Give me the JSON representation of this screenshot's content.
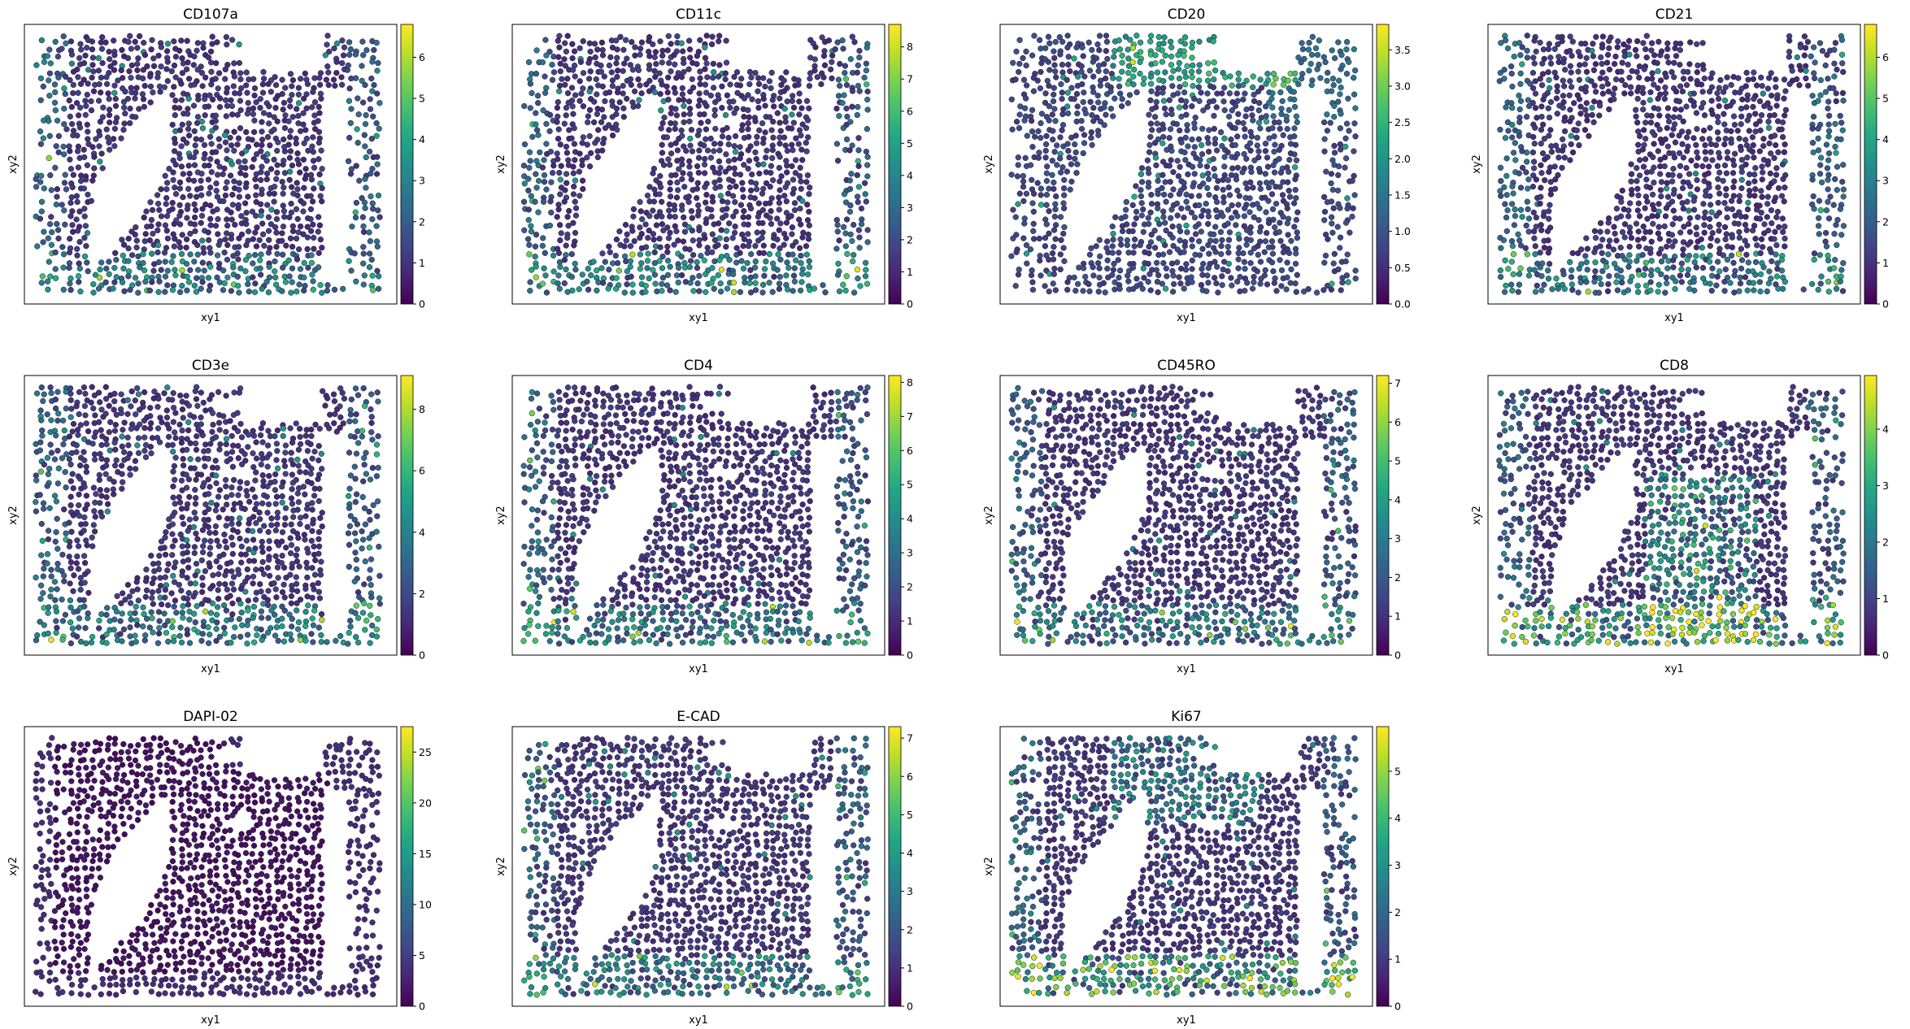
{
  "figure": {
    "background": "#ffffff",
    "colormap": "viridis"
  },
  "chart_data": [
    {
      "type": "scatter",
      "title": "CD107a",
      "xlabel": "xy1",
      "ylabel": "xy2",
      "colorbar": {
        "ticks": [
          0,
          1,
          2,
          3,
          4,
          5,
          6
        ],
        "max": 6.8
      },
      "pattern": "general"
    },
    {
      "type": "scatter",
      "title": "CD11c",
      "xlabel": "xy1",
      "ylabel": "xy2",
      "colorbar": {
        "ticks": [
          0,
          1,
          2,
          3,
          4,
          5,
          6,
          7,
          8
        ],
        "max": 8.7
      },
      "pattern": "general"
    },
    {
      "type": "scatter",
      "title": "CD20",
      "xlabel": "xy1",
      "ylabel": "xy2",
      "colorbar": {
        "ticks": [
          "0.0",
          "0.5",
          "1.0",
          "1.5",
          "2.0",
          "2.5",
          "3.0",
          "3.5"
        ],
        "max": 3.85
      },
      "pattern": "cd20"
    },
    {
      "type": "scatter",
      "title": "CD21",
      "xlabel": "xy1",
      "ylabel": "xy2",
      "colorbar": {
        "ticks": [
          0,
          1,
          2,
          3,
          4,
          5,
          6
        ],
        "max": 6.8
      },
      "pattern": "general"
    },
    {
      "type": "scatter",
      "title": "CD3e",
      "xlabel": "xy1",
      "ylabel": "xy2",
      "colorbar": {
        "ticks": [
          0,
          2,
          4,
          6,
          8
        ],
        "max": 9.1
      },
      "pattern": "general"
    },
    {
      "type": "scatter",
      "title": "CD4",
      "xlabel": "xy1",
      "ylabel": "xy2",
      "colorbar": {
        "ticks": [
          0,
          1,
          2,
          3,
          4,
          5,
          6,
          7,
          8
        ],
        "max": 8.2
      },
      "pattern": "general"
    },
    {
      "type": "scatter",
      "title": "CD45RO",
      "xlabel": "xy1",
      "ylabel": "xy2",
      "colorbar": {
        "ticks": [
          0,
          1,
          2,
          3,
          4,
          5,
          6,
          7
        ],
        "max": 7.2
      },
      "pattern": "general"
    },
    {
      "type": "scatter",
      "title": "CD8",
      "xlabel": "xy1",
      "ylabel": "xy2",
      "colorbar": {
        "ticks": [
          0,
          1,
          2,
          3,
          4
        ],
        "max": 4.95
      },
      "pattern": "cd8"
    },
    {
      "type": "scatter",
      "title": "DAPI-02",
      "xlabel": "xy1",
      "ylabel": "xy2",
      "colorbar": {
        "ticks": [
          0,
          5,
          10,
          15,
          20,
          25
        ],
        "max": 27.5
      },
      "pattern": "dapi"
    },
    {
      "type": "scatter",
      "title": "E-CAD",
      "xlabel": "xy1",
      "ylabel": "xy2",
      "colorbar": {
        "ticks": [
          0,
          1,
          2,
          3,
          4,
          5,
          6,
          7
        ],
        "max": 7.3
      },
      "pattern": "general"
    },
    {
      "type": "scatter",
      "title": "Ki67",
      "xlabel": "xy1",
      "ylabel": "xy2",
      "colorbar": {
        "ticks": [
          0,
          1,
          2,
          3,
          4,
          5
        ],
        "max": 5.95
      },
      "pattern": "ki67"
    }
  ]
}
